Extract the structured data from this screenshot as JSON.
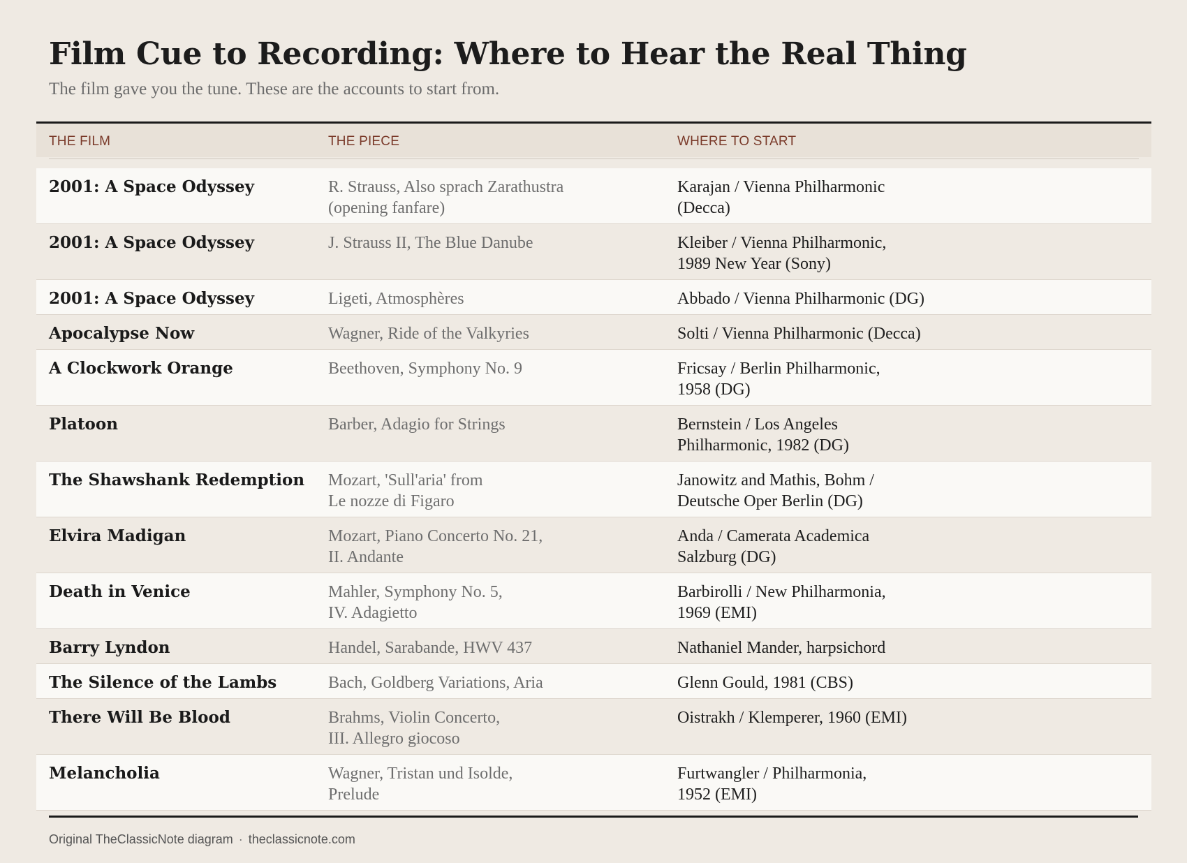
{
  "title": "Film Cue to Recording: Where to Hear the Real Thing",
  "subtitle": "The film gave you the tune. These are the accounts to start from.",
  "table": {
    "headers": [
      "THE FILM",
      "THE PIECE",
      "WHERE TO START"
    ],
    "rows": [
      {
        "film": "2001: A Space Odyssey",
        "piece": [
          "R. Strauss, Also sprach Zarathustra",
          "(opening fanfare)"
        ],
        "recording": [
          "Karajan / Vienna Philharmonic",
          "(Decca)"
        ]
      },
      {
        "film": "2001: A Space Odyssey",
        "piece": [
          "J. Strauss II, The Blue Danube"
        ],
        "recording": [
          "Kleiber / Vienna Philharmonic,",
          "1989 New Year (Sony)"
        ]
      },
      {
        "film": "2001: A Space Odyssey",
        "piece": [
          "Ligeti, Atmosphères"
        ],
        "recording": [
          "Abbado / Vienna Philharmonic (DG)"
        ]
      },
      {
        "film": "Apocalypse Now",
        "piece": [
          "Wagner, Ride of the Valkyries"
        ],
        "recording": [
          "Solti / Vienna Philharmonic (Decca)"
        ]
      },
      {
        "film": "A Clockwork Orange",
        "piece": [
          "Beethoven, Symphony No. 9"
        ],
        "recording": [
          "Fricsay / Berlin Philharmonic,",
          "1958 (DG)"
        ]
      },
      {
        "film": "Platoon",
        "piece": [
          "Barber, Adagio for Strings"
        ],
        "recording": [
          "Bernstein / Los Angeles",
          "Philharmonic, 1982 (DG)"
        ]
      },
      {
        "film": "The Shawshank Redemption",
        "piece": [
          "Mozart, 'Sull'aria' from",
          "Le nozze di Figaro"
        ],
        "recording": [
          "Janowitz and Mathis, Bohm /",
          "Deutsche Oper Berlin (DG)"
        ]
      },
      {
        "film": "Elvira Madigan",
        "piece": [
          "Mozart, Piano Concerto No. 21,",
          "II. Andante"
        ],
        "recording": [
          "Anda / Camerata Academica",
          "Salzburg (DG)"
        ]
      },
      {
        "film": "Death in Venice",
        "piece": [
          "Mahler, Symphony No. 5,",
          "IV. Adagietto"
        ],
        "recording": [
          "Barbirolli / New Philharmonia,",
          "1969 (EMI)"
        ]
      },
      {
        "film": "Barry Lyndon",
        "piece": [
          "Handel, Sarabande, HWV 437"
        ],
        "recording": [
          "Nathaniel Mander, harpsichord"
        ]
      },
      {
        "film": "The Silence of the Lambs",
        "piece": [
          "Bach, Goldberg Variations, Aria"
        ],
        "recording": [
          "Glenn Gould, 1981 (CBS)"
        ]
      },
      {
        "film": "There Will Be Blood",
        "piece": [
          "Brahms, Violin Concerto,",
          "III. Allegro giocoso"
        ],
        "recording": [
          "Oistrakh / Klemperer, 1960 (EMI)"
        ]
      },
      {
        "film": "Melancholia",
        "piece": [
          "Wagner, Tristan und Isolde,",
          "Prelude"
        ],
        "recording": [
          "Furtwangler / Philharmonia,",
          "1952 (EMI)"
        ]
      }
    ]
  },
  "footer": {
    "credit": "Original TheClassicNote diagram",
    "separator": "·",
    "site": "theclassicnote.com"
  },
  "colors": {
    "background": "#efeae3",
    "header_band": "#e8e1d8",
    "header_text": "#7a3a2a",
    "row_light": "#faf9f6"
  }
}
